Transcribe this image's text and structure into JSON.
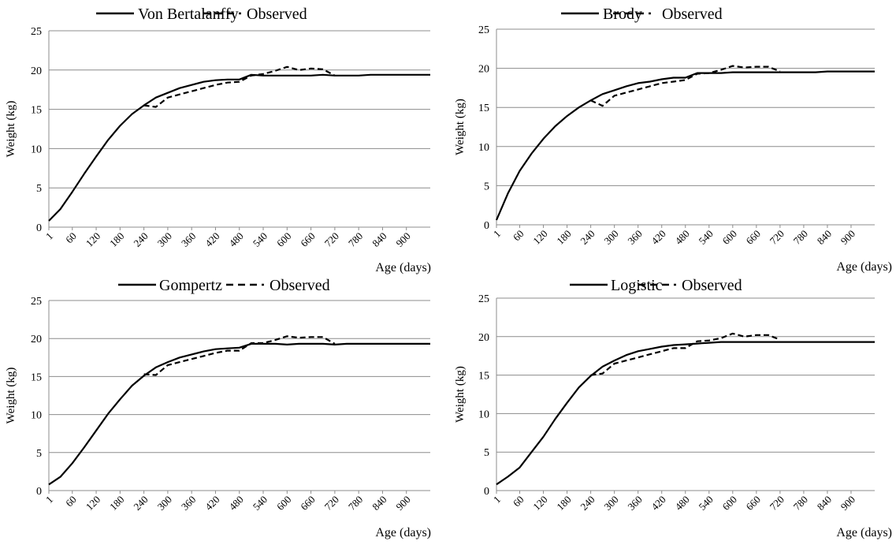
{
  "chart_data": [
    {
      "type": "line",
      "title": "",
      "xlabel": "Age (days)",
      "ylabel": "Weight (kg)",
      "ylim": [
        0,
        25
      ],
      "yticks": [
        0,
        5,
        10,
        15,
        20,
        25
      ],
      "categories": [
        "1",
        "60",
        "120",
        "180",
        "240",
        "300",
        "360",
        "420",
        "480",
        "540",
        "600",
        "660",
        "720",
        "780",
        "840",
        "900"
      ],
      "grid": "horizontal",
      "legend_position": "top",
      "series": [
        {
          "name": "Von Bertalanffy",
          "style": "solid",
          "x": [
            1,
            30,
            60,
            90,
            120,
            150,
            180,
            210,
            240,
            270,
            300,
            330,
            360,
            390,
            420,
            450,
            480,
            510,
            540,
            570,
            600,
            630,
            660,
            690,
            720,
            750,
            780,
            810,
            840,
            870,
            900,
            930,
            960
          ],
          "y": [
            0.8,
            2.3,
            4.5,
            6.8,
            9.0,
            11.1,
            12.9,
            14.4,
            15.5,
            16.5,
            17.1,
            17.7,
            18.1,
            18.5,
            18.7,
            18.8,
            18.8,
            19.4,
            19.3,
            19.3,
            19.3,
            19.3,
            19.3,
            19.4,
            19.3,
            19.3,
            19.3,
            19.4,
            19.4,
            19.4,
            19.4,
            19.4,
            19.4
          ]
        },
        {
          "name": "Observed",
          "style": "dashed",
          "x": [
            240,
            270,
            300,
            330,
            360,
            390,
            420,
            450,
            480,
            510,
            540,
            570,
            600,
            630,
            660,
            690,
            720
          ],
          "y": [
            15.5,
            15.3,
            16.5,
            16.9,
            17.3,
            17.7,
            18.1,
            18.4,
            18.5,
            19.3,
            19.5,
            19.9,
            20.4,
            20.0,
            20.2,
            20.1,
            19.3
          ]
        }
      ]
    },
    {
      "type": "line",
      "title": "",
      "xlabel": "Age (days)",
      "ylabel": "Weight (kg)",
      "ylim": [
        0,
        25
      ],
      "yticks": [
        0,
        5,
        10,
        15,
        20,
        25
      ],
      "categories": [
        "1",
        "60",
        "120",
        "180",
        "240",
        "300",
        "360",
        "420",
        "480",
        "540",
        "600",
        "660",
        "720",
        "780",
        "840",
        "900"
      ],
      "grid": "horizontal",
      "legend_position": "top",
      "series": [
        {
          "name": "Brody",
          "style": "solid",
          "x": [
            1,
            30,
            60,
            90,
            120,
            150,
            180,
            210,
            240,
            270,
            300,
            330,
            360,
            390,
            420,
            450,
            480,
            510,
            540,
            570,
            600,
            630,
            660,
            690,
            720,
            750,
            780,
            810,
            840,
            870,
            900,
            930,
            960
          ],
          "y": [
            0.6,
            4.0,
            6.9,
            9.1,
            11.0,
            12.6,
            13.9,
            15.0,
            15.9,
            16.7,
            17.2,
            17.7,
            18.1,
            18.3,
            18.6,
            18.8,
            18.8,
            19.4,
            19.4,
            19.4,
            19.5,
            19.5,
            19.5,
            19.5,
            19.5,
            19.5,
            19.5,
            19.5,
            19.6,
            19.6,
            19.6,
            19.6,
            19.6
          ]
        },
        {
          "name": "Observed",
          "style": "dashed",
          "x": [
            240,
            270,
            300,
            330,
            360,
            390,
            420,
            450,
            480,
            510,
            540,
            570,
            600,
            630,
            660,
            690,
            720
          ],
          "y": [
            15.9,
            15.2,
            16.5,
            16.9,
            17.3,
            17.7,
            18.1,
            18.3,
            18.5,
            19.3,
            19.4,
            19.8,
            20.3,
            20.1,
            20.2,
            20.2,
            19.6
          ]
        }
      ]
    },
    {
      "type": "line",
      "title": "",
      "xlabel": "Age (days)",
      "ylabel": "Weight (kg)",
      "ylim": [
        0,
        25
      ],
      "yticks": [
        0,
        5,
        10,
        15,
        20,
        25
      ],
      "categories": [
        "1",
        "60",
        "120",
        "180",
        "240",
        "300",
        "360",
        "420",
        "480",
        "540",
        "600",
        "660",
        "720",
        "780",
        "840",
        "900"
      ],
      "grid": "horizontal",
      "legend_position": "top",
      "series": [
        {
          "name": "Gompertz",
          "style": "solid",
          "x": [
            1,
            30,
            60,
            90,
            120,
            150,
            180,
            210,
            240,
            270,
            300,
            330,
            360,
            390,
            420,
            450,
            480,
            510,
            540,
            570,
            600,
            630,
            660,
            690,
            720,
            750,
            780,
            810,
            840,
            870,
            900,
            930,
            960
          ],
          "y": [
            0.8,
            1.8,
            3.6,
            5.7,
            7.9,
            10.1,
            12.0,
            13.8,
            15.1,
            16.2,
            16.9,
            17.5,
            17.9,
            18.3,
            18.6,
            18.7,
            18.8,
            19.3,
            19.3,
            19.3,
            19.2,
            19.3,
            19.3,
            19.3,
            19.2,
            19.3,
            19.3,
            19.3,
            19.3,
            19.3,
            19.3,
            19.3,
            19.3
          ]
        },
        {
          "name": "Observed",
          "style": "dashed",
          "x": [
            240,
            270,
            300,
            330,
            360,
            390,
            420,
            450,
            480,
            510,
            540,
            570,
            600,
            630,
            660,
            690,
            720
          ],
          "y": [
            15.3,
            15.2,
            16.5,
            16.9,
            17.3,
            17.7,
            18.1,
            18.4,
            18.4,
            19.4,
            19.4,
            19.8,
            20.3,
            20.1,
            20.2,
            20.2,
            19.3
          ]
        }
      ]
    },
    {
      "type": "line",
      "title": "",
      "xlabel": "Age (days)",
      "ylabel": "Weight (kg)",
      "ylim": [
        0,
        25
      ],
      "yticks": [
        0,
        5,
        10,
        15,
        20,
        25
      ],
      "categories": [
        "1",
        "60",
        "120",
        "180",
        "240",
        "300",
        "360",
        "420",
        "480",
        "540",
        "600",
        "660",
        "720",
        "780",
        "840",
        "900"
      ],
      "grid": "horizontal",
      "legend_position": "top",
      "series": [
        {
          "name": "Logistic",
          "style": "solid",
          "x": [
            1,
            30,
            60,
            90,
            120,
            150,
            180,
            210,
            240,
            270,
            300,
            330,
            360,
            390,
            420,
            450,
            480,
            510,
            540,
            570,
            600,
            630,
            660,
            690,
            720,
            750,
            780,
            810,
            840,
            870,
            900,
            930,
            960
          ],
          "y": [
            0.8,
            1.8,
            3.0,
            5.0,
            7.0,
            9.3,
            11.4,
            13.4,
            14.9,
            16.1,
            16.9,
            17.6,
            18.1,
            18.4,
            18.7,
            18.9,
            19.0,
            19.1,
            19.2,
            19.3,
            19.3,
            19.3,
            19.3,
            19.3,
            19.3,
            19.3,
            19.3,
            19.3,
            19.3,
            19.3,
            19.3,
            19.3,
            19.3
          ]
        },
        {
          "name": "Observed",
          "style": "dashed",
          "x": [
            240,
            270,
            300,
            330,
            360,
            390,
            420,
            450,
            480,
            510,
            540,
            570,
            600,
            630,
            660,
            690,
            720
          ],
          "y": [
            15.0,
            15.2,
            16.5,
            16.9,
            17.3,
            17.7,
            18.1,
            18.5,
            18.5,
            19.4,
            19.5,
            19.8,
            20.4,
            20.0,
            20.2,
            20.2,
            19.6
          ]
        }
      ]
    }
  ]
}
